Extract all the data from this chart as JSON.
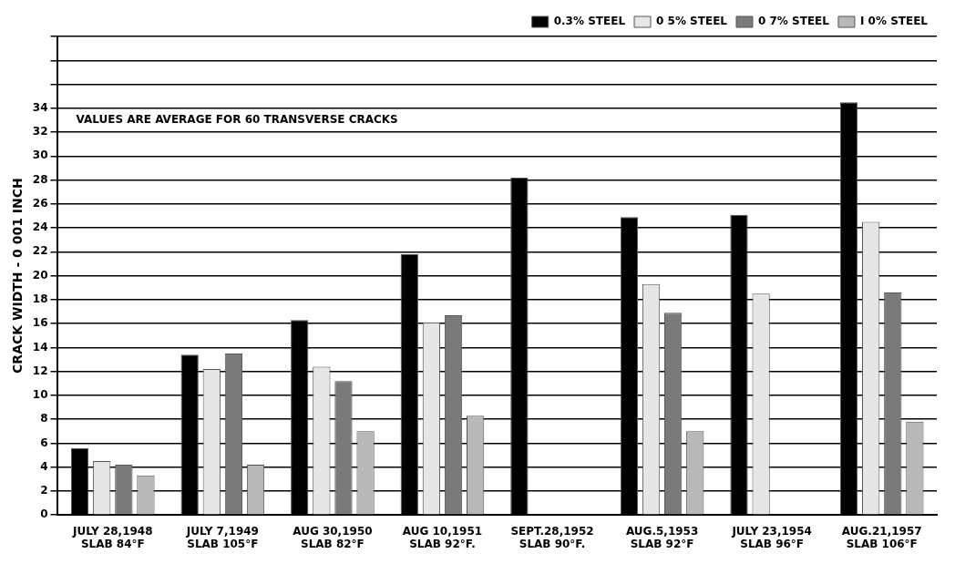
{
  "chart_data": {
    "type": "bar",
    "ylabel": "CRACK WIDTH - 0 001 INCH",
    "categories": [
      "JULY 28,1948\nSLAB 84°F",
      "JULY 7,1949\nSLAB 105°F",
      "AUG 30,1950\nSLAB 82°F",
      "AUG 10,1951\nSLAB 92°F.",
      "SEPT.28,1952\nSLAB 90°F.",
      "AUG.5,1953\nSLAB 92°F",
      "JULY 23,1954\nSLAB 96°F",
      "AUG.21,1957\nSLAB 106°F"
    ],
    "series": [
      {
        "name": "0.3% STEEL",
        "color": "#000000",
        "values": [
          5.6,
          13.4,
          16.3,
          21.8,
          28.2,
          24.9,
          25.1,
          34.5
        ]
      },
      {
        "name": "0 5% STEEL",
        "color": "#e6e6e6",
        "values": [
          4.5,
          12.2,
          12.4,
          16.1,
          null,
          19.3,
          18.5,
          24.5
        ]
      },
      {
        "name": "0 7% STEEL",
        "color": "#7a7a7a",
        "values": [
          4.2,
          13.5,
          11.2,
          16.7,
          null,
          16.9,
          null,
          18.6
        ]
      },
      {
        "name": "I 0% STEEL",
        "color": "#b8b8b8",
        "values": [
          3.3,
          4.2,
          7.0,
          8.3,
          null,
          7.0,
          null,
          7.8
        ]
      }
    ],
    "ylim": [
      0,
      40
    ],
    "yticks": [
      0,
      2,
      4,
      6,
      8,
      10,
      12,
      14,
      16,
      18,
      20,
      22,
      24,
      26,
      28,
      30,
      32,
      34,
      {
        "value": 36,
        "label": null
      },
      {
        "value": 38,
        "label": null
      },
      {
        "value": 40,
        "label": null
      }
    ],
    "grid": "y",
    "legend": "top right",
    "annotations": [
      "VALUES ARE AVERAGE FOR 60 TRANSVERSE CRACKS"
    ]
  }
}
